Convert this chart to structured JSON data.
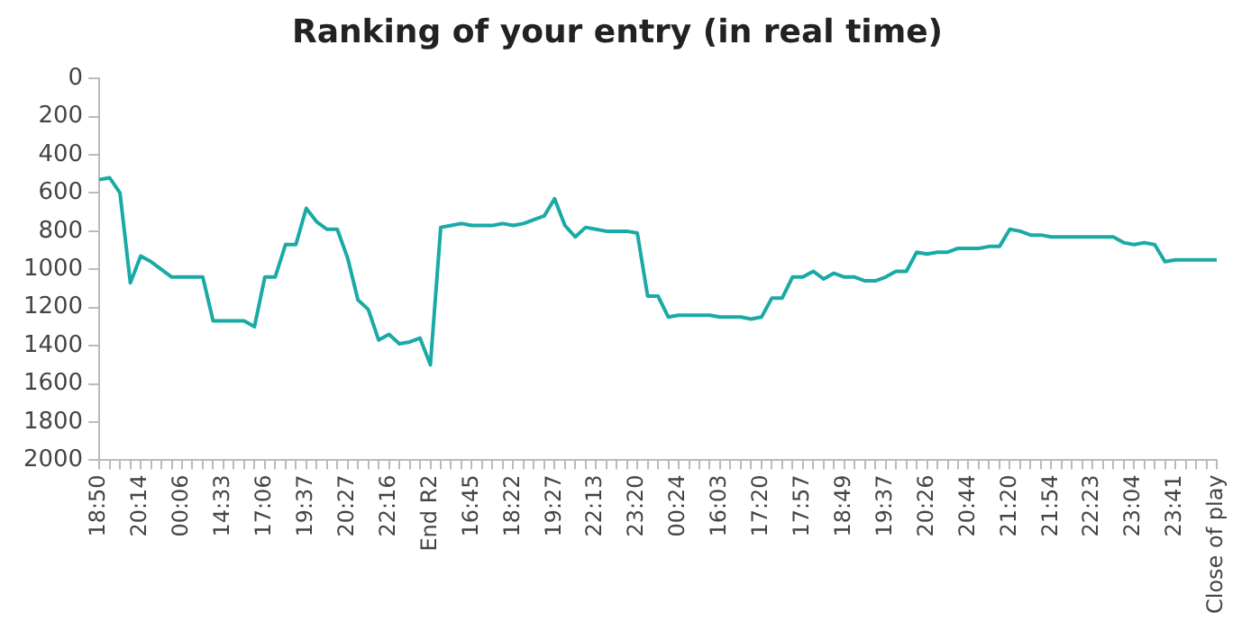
{
  "chart_data": {
    "type": "line",
    "title": "Ranking of your entry (in real time)",
    "categories": [
      "18:50",
      null,
      null,
      null,
      "20:14",
      null,
      null,
      null,
      "00:06",
      null,
      null,
      null,
      "14:33",
      null,
      null,
      null,
      "17:06",
      null,
      null,
      null,
      "19:37",
      null,
      null,
      null,
      "20:27",
      null,
      null,
      null,
      "22:16",
      null,
      null,
      null,
      "End R2",
      null,
      null,
      null,
      "16:45",
      null,
      null,
      null,
      "18:22",
      null,
      null,
      null,
      "19:27",
      null,
      null,
      null,
      "22:13",
      null,
      null,
      null,
      "23:20",
      null,
      null,
      null,
      "00:24",
      null,
      null,
      null,
      "16:03",
      null,
      null,
      null,
      "17:20",
      null,
      null,
      null,
      "17:57",
      null,
      null,
      null,
      "18:49",
      null,
      null,
      null,
      "19:37",
      null,
      null,
      null,
      "20:26",
      null,
      null,
      null,
      "20:44",
      null,
      null,
      null,
      "21:20",
      null,
      null,
      null,
      "21:54",
      null,
      null,
      null,
      "22:23",
      null,
      null,
      null,
      "23:04",
      null,
      null,
      null,
      "23:41",
      null,
      null,
      null,
      "Close of play"
    ],
    "series": [
      {
        "color": "#1aaaa6",
        "values": [
          530,
          520,
          600,
          1070,
          930,
          960,
          1000,
          1040,
          1040,
          1040,
          1040,
          1270,
          1270,
          1270,
          1270,
          1300,
          1040,
          1040,
          870,
          870,
          680,
          750,
          790,
          790,
          940,
          1160,
          1210,
          1370,
          1340,
          1390,
          1380,
          1360,
          1500,
          780,
          770,
          760,
          770,
          770,
          770,
          760,
          770,
          760,
          740,
          720,
          630,
          770,
          830,
          780,
          790,
          800,
          800,
          800,
          810,
          1140,
          1140,
          1250,
          1240,
          1240,
          1240,
          1240,
          1250,
          1250,
          1250,
          1260,
          1250,
          1150,
          1150,
          1040,
          1040,
          1010,
          1050,
          1020,
          1040,
          1040,
          1060,
          1060,
          1040,
          1010,
          1010,
          910,
          920,
          910,
          910,
          890,
          890,
          890,
          880,
          880,
          790,
          800,
          820,
          820,
          830,
          830,
          830,
          830,
          830,
          830,
          830,
          860,
          870,
          860,
          870,
          960,
          950,
          950,
          950,
          950,
          950
        ]
      }
    ],
    "ylim": [
      2000,
      0
    ],
    "yticks": [
      0,
      200,
      400,
      600,
      800,
      1000,
      1200,
      1400,
      1600,
      1800,
      2000
    ],
    "grid": false,
    "legend": false,
    "marker": "none",
    "line_style": "solid"
  }
}
